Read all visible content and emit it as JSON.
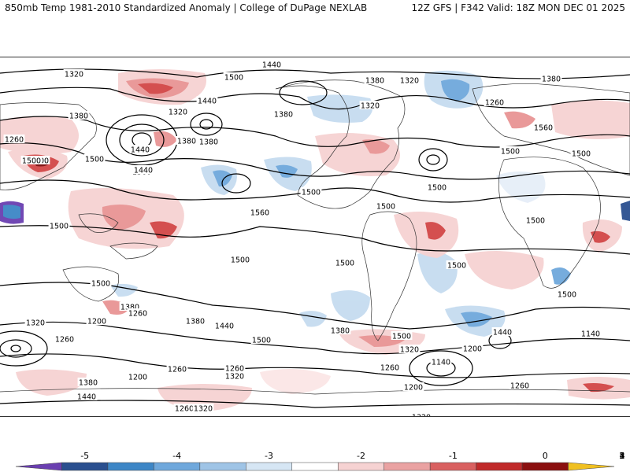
{
  "header": {
    "left": "850mb Temp 1981-2010 Standardized Anomaly | College of DuPage NEXLAB",
    "right": "12Z GFS | F342 Valid: 18Z MON DEC 01 2025"
  },
  "map": {
    "contour_labels": [
      "1440",
      "1320",
      "1500",
      "1380",
      "1440",
      "1320",
      "1380",
      "1320",
      "1260",
      "1380",
      "1380",
      "1320",
      "1380",
      "1440",
      "1380",
      "1560",
      "1260",
      "1500",
      "1560",
      "1500",
      "1440",
      "1500",
      "1500",
      "1500",
      "1500",
      "1560",
      "1500",
      "1500",
      "1500",
      "1500",
      "1500",
      "1500",
      "1500",
      "1500",
      "1500",
      "1380",
      "1320",
      "1200",
      "1260",
      "1380",
      "1440",
      "1380",
      "1500",
      "1500",
      "1440",
      "1260",
      "1200",
      "1140",
      "1320",
      "1260",
      "1320",
      "1260",
      "1200",
      "1140",
      "1380",
      "1440",
      "1260",
      "1260",
      "1320",
      "1320",
      "1200",
      "1260"
    ],
    "anomaly_colors": {
      "neg5": "#6a3fb0",
      "neg4": "#2a4f8f",
      "neg3": "#3d86c6",
      "neg2": "#6fa8dc",
      "neg1": "#c6dcf0",
      "zero": "#ffffff",
      "pos1": "#f6d2d2",
      "pos2": "#e89494",
      "pos3": "#d24646",
      "pos4": "#b01818",
      "pos5": "#7a0b0b",
      "over": "#f0c020"
    }
  },
  "colorbar": {
    "ticks": [
      "-5",
      "-4",
      "-3",
      "-2",
      "-1",
      "0",
      "1",
      "2",
      "3",
      "4",
      "5"
    ],
    "colors": [
      "#6a3fb0",
      "#2a4f8f",
      "#3d86c6",
      "#6fa8dc",
      "#9fc4e6",
      "#d6e6f4",
      "#ffffff",
      "#f6d2d2",
      "#eaa2a2",
      "#d96060",
      "#c02a2a",
      "#8b0f0f",
      "#f0c020"
    ]
  }
}
